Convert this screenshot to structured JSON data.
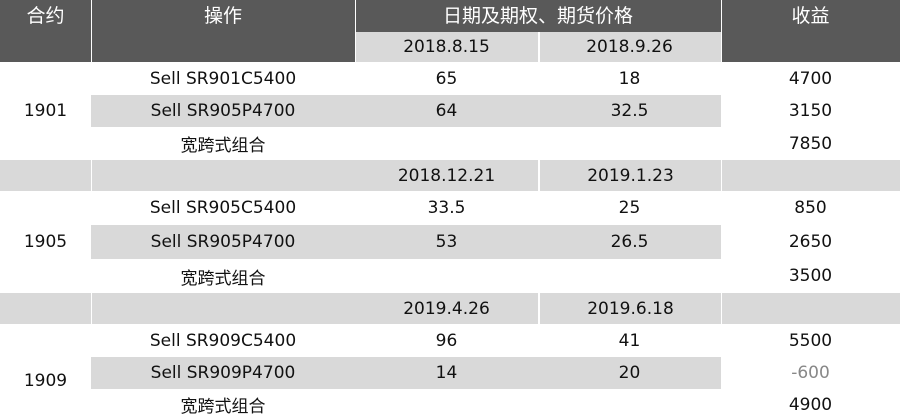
{
  "header": {
    "contract": "合约",
    "operation": "操作",
    "prices": "日期及期权、期货价格",
    "profit": "收益"
  },
  "groups": [
    {
      "contract": "1901",
      "dates": [
        "2018.8.15",
        "2018.9.26"
      ],
      "rows": [
        {
          "operation": "Sell SR901C5400",
          "price1": "65",
          "price2": "18",
          "profit": "4700"
        },
        {
          "operation": "Sell SR905P4700",
          "price1": "64",
          "price2": "32.5",
          "profit": "3150"
        },
        {
          "operation": "宽跨式组合",
          "price1": "",
          "price2": "",
          "profit": "7850"
        }
      ]
    },
    {
      "contract": "1905",
      "dates": [
        "2018.12.21",
        "2019.1.23"
      ],
      "rows": [
        {
          "operation": "Sell SR905C5400",
          "price1": "33.5",
          "price2": "25",
          "profit": "850"
        },
        {
          "operation": "Sell SR905P4700",
          "price1": "53",
          "price2": "26.5",
          "profit": "2650"
        },
        {
          "operation": "宽跨式组合",
          "price1": "",
          "price2": "",
          "profit": "3500"
        }
      ]
    },
    {
      "contract": "1909",
      "dates": [
        "2019.4.26",
        "2019.6.18"
      ],
      "rows": [
        {
          "operation": "Sell SR909C5400",
          "price1": "96",
          "price2": "41",
          "profit": "5500"
        },
        {
          "operation": "Sell SR909P4700",
          "price1": "14",
          "price2": "20",
          "profit": "-600"
        },
        {
          "operation": "宽跨式组合",
          "price1": "",
          "price2": "",
          "profit": "4900"
        }
      ]
    }
  ],
  "colors": {
    "header_bg": "#595959",
    "band_gray": "#d9d9d9",
    "negative_text": "#888888"
  }
}
